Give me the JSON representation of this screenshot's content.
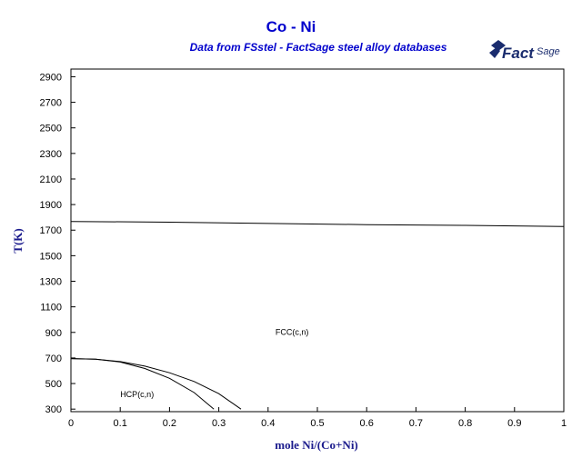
{
  "header": {
    "title": "Co - Ni",
    "subtitle": "Data from FSstel - FactSage steel alloy databases",
    "logo_text": "FactSage"
  },
  "chart_data": {
    "type": "line",
    "xlabel": "mole Ni/(Co+Ni)",
    "ylabel": "T(K)",
    "xlim": [
      0,
      1
    ],
    "ylim": [
      280,
      2960
    ],
    "xticks": [
      0,
      0.1,
      0.2,
      0.3,
      0.4,
      0.5,
      0.6,
      0.7,
      0.8,
      0.9,
      1
    ],
    "xtick_labels": [
      "0",
      "0.1",
      "0.2",
      "0.3",
      "0.4",
      "0.5",
      "0.6",
      "0.7",
      "0.8",
      "0.9",
      "1"
    ],
    "yticks": [
      300,
      500,
      700,
      900,
      1100,
      1300,
      1500,
      1700,
      1900,
      2100,
      2300,
      2500,
      2700,
      2900
    ],
    "ytick_labels": [
      "300",
      "500",
      "700",
      "900",
      "1100",
      "1300",
      "1500",
      "1700",
      "1900",
      "2100",
      "2300",
      "2500",
      "2700",
      "2900"
    ],
    "grid": false,
    "series": [
      {
        "color": "#000000",
        "x": [
          0,
          0.2,
          0.4,
          0.6,
          0.8,
          1.0
        ],
        "y": [
          1768,
          1762,
          1752,
          1743,
          1737,
          1728
        ]
      },
      {
        "color": "#000000",
        "x": [
          0,
          0.05,
          0.1,
          0.15,
          0.2,
          0.25,
          0.3,
          0.345
        ],
        "y": [
          695,
          690,
          672,
          636,
          584,
          516,
          421,
          300
        ]
      },
      {
        "color": "#000000",
        "x": [
          0,
          0.05,
          0.1,
          0.15,
          0.2,
          0.25,
          0.29
        ],
        "y": [
          695,
          690,
          668,
          618,
          541,
          429,
          300
        ]
      }
    ],
    "annotations": [
      {
        "text": "FCC(c,n)",
        "x": 0.415,
        "y": 880
      },
      {
        "text": "HCP(c,n)",
        "x": 0.1,
        "y": 395
      }
    ]
  }
}
